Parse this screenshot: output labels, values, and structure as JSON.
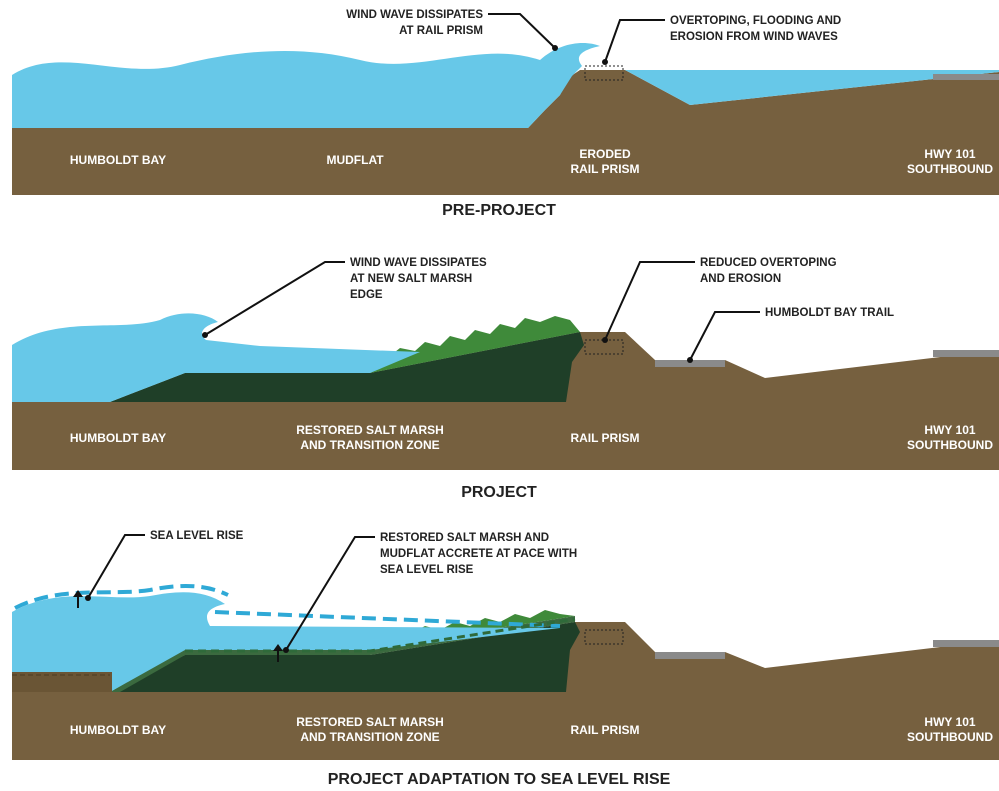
{
  "panels": [
    {
      "title": "PRE-PROJECT",
      "callouts": [
        {
          "lines": [
            "WIND WAVE DISSIPATES",
            "AT RAIL PRISM"
          ]
        },
        {
          "lines": [
            "OVERTOPING, FLOODING AND",
            "EROSION FROM WIND WAVES"
          ]
        }
      ],
      "ground_labels": [
        {
          "lines": [
            "HUMBOLDT BAY"
          ]
        },
        {
          "lines": [
            "MUDFLAT"
          ]
        },
        {
          "lines": [
            "ERODED",
            "RAIL PRISM"
          ]
        },
        {
          "lines": [
            "HWY 101",
            "SOUTHBOUND"
          ]
        }
      ]
    },
    {
      "title": "PROJECT",
      "callouts": [
        {
          "lines": [
            "WIND WAVE DISSIPATES",
            "AT NEW SALT MARSH",
            "EDGE"
          ]
        },
        {
          "lines": [
            "REDUCED OVERTOPING",
            "AND EROSION"
          ]
        },
        {
          "lines": [
            "HUMBOLDT BAY TRAIL"
          ]
        }
      ],
      "ground_labels": [
        {
          "lines": [
            "HUMBOLDT BAY"
          ]
        },
        {
          "lines": [
            "RESTORED SALT MARSH",
            "AND TRANSITION ZONE"
          ]
        },
        {
          "lines": [
            "RAIL PRISM"
          ]
        },
        {
          "lines": [
            "HWY 101",
            "SOUTHBOUND"
          ]
        }
      ]
    },
    {
      "title": "PROJECT ADAPTATION TO SEA LEVEL RISE",
      "callouts": [
        {
          "lines": [
            "SEA LEVEL RISE"
          ]
        },
        {
          "lines": [
            "RESTORED SALT MARSH AND",
            "MUDFLAT ACCRETE AT PACE WITH",
            "SEA LEVEL RISE"
          ]
        }
      ],
      "ground_labels": [
        {
          "lines": [
            "HUMBOLDT BAY"
          ]
        },
        {
          "lines": [
            "RESTORED SALT MARSH",
            "AND TRANSITION ZONE"
          ]
        },
        {
          "lines": [
            "RAIL PRISM"
          ]
        },
        {
          "lines": [
            "HWY 101",
            "SOUTHBOUND"
          ]
        }
      ]
    }
  ]
}
